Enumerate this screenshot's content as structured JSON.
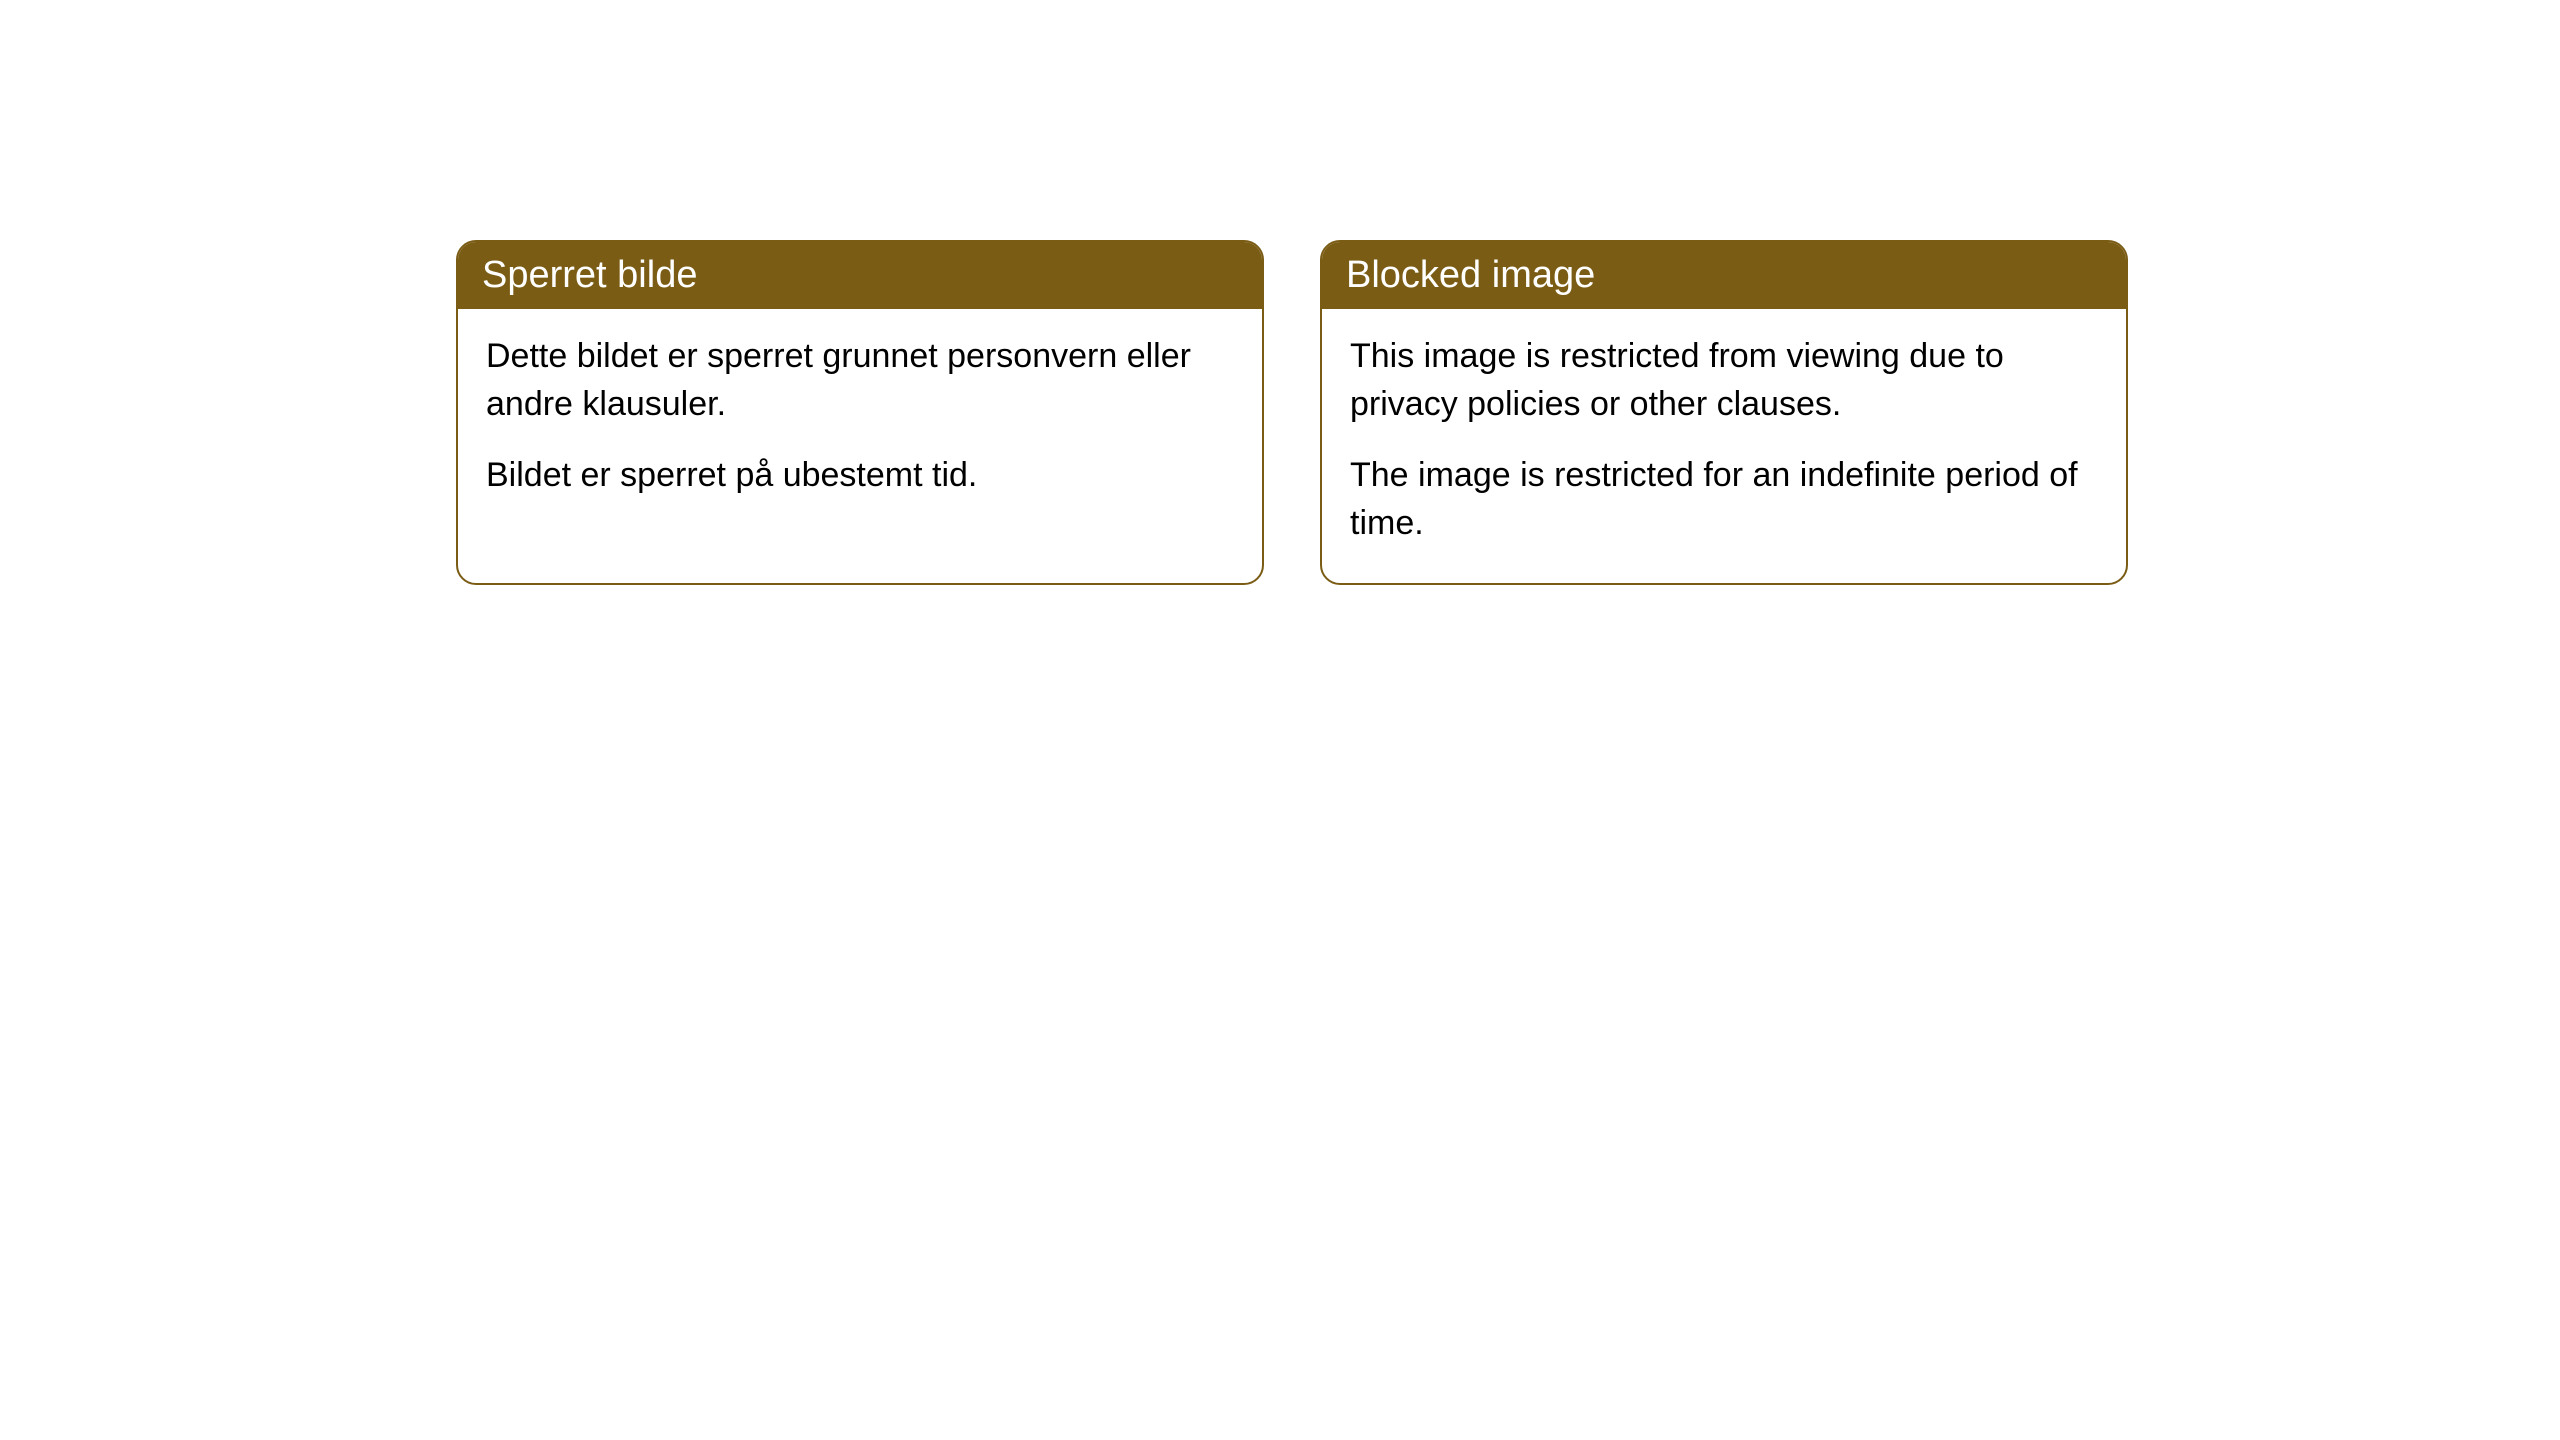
{
  "cards": [
    {
      "title": "Sperret bilde",
      "para1": "Dette bildet er sperret grunnet personvern eller andre klausuler.",
      "para2": "Bildet er sperret på ubestemt tid."
    },
    {
      "title": "Blocked image",
      "para1": "This image is restricted from viewing due to privacy policies or other clauses.",
      "para2": "The image is restricted for an indefinite period of time."
    }
  ],
  "styling": {
    "header_background": "#7a5c14",
    "header_text_color": "#ffffff",
    "border_color": "#7a5c14",
    "border_radius": "20px",
    "body_text_color": "#000000",
    "background_color": "#ffffff",
    "title_fontsize": 38,
    "body_fontsize": 34
  }
}
